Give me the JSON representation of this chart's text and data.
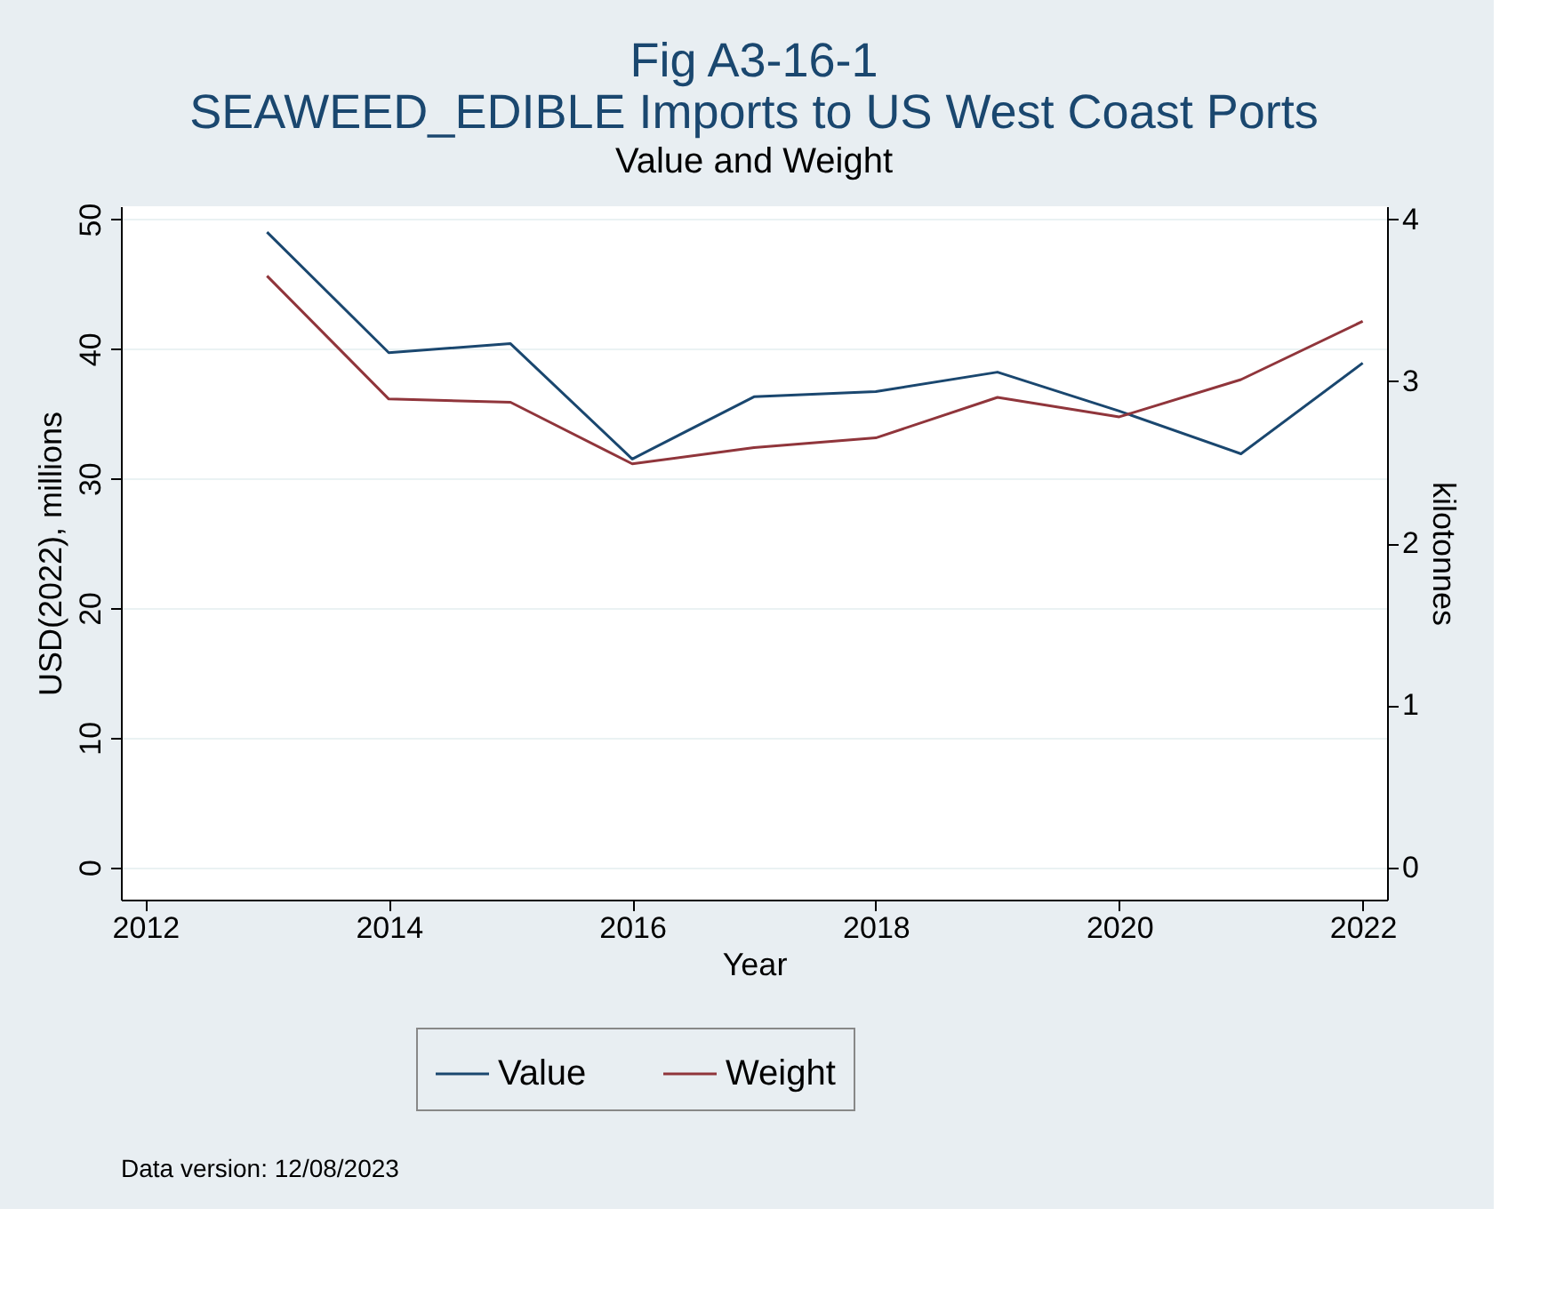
{
  "chart_data": {
    "type": "line",
    "title": [
      "Fig A3-16-1",
      "SEAWEED_EDIBLE Imports to US West Coast Ports"
    ],
    "subtitle": "Value and Weight",
    "xlabel": "Year",
    "ylabel": "USD(2022), millions",
    "y2label": "kilotonnes",
    "x": [
      2013,
      2014,
      2015,
      2016,
      2017,
      2018,
      2019,
      2020,
      2021,
      2022
    ],
    "series": [
      {
        "name": "Value",
        "color": "#1a476f",
        "values": [
          49.0,
          39.7,
          40.4,
          31.5,
          36.3,
          36.7,
          38.2,
          35.2,
          31.9,
          38.9
        ]
      },
      {
        "name": "Weight",
        "color": "#90353b",
        "axis": "y2",
        "values": [
          3.65,
          2.89,
          2.87,
          2.49,
          2.59,
          2.65,
          2.9,
          2.78,
          3.01,
          3.37
        ]
      }
    ],
    "xlim": [
      2011.8,
      2022.2
    ],
    "xticks": [
      2012,
      2014,
      2016,
      2018,
      2020,
      2022
    ],
    "ylim": [
      -2.5,
      51
    ],
    "yticks": [
      0,
      10,
      20,
      30,
      40,
      50
    ],
    "y2lim": [
      -0.2,
      4.08
    ],
    "y2ticks": [
      0,
      1,
      2,
      3,
      4
    ],
    "grid": "y",
    "legend": "bottom",
    "marker": "none",
    "line_style": "solid",
    "annotations": [
      "Data version: 12/08/2023"
    ]
  }
}
